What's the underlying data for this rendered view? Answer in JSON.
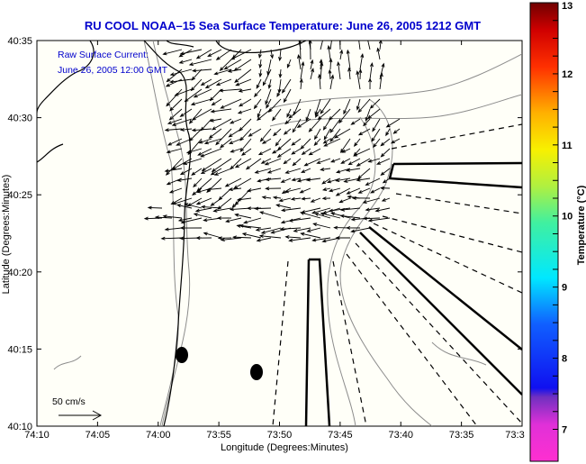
{
  "title": "RU COOL  NOAA–15  Sea Surface Temperature:  June 26, 2005 1212 GMT",
  "annotation": {
    "line1": "Raw Surface Current:",
    "line2": "June 26, 2005 12:00 GMT"
  },
  "scale_label": "50 cm/s",
  "colors": {
    "title": "#0000cc",
    "axes": "#000000",
    "contour": "#8c8c8c",
    "field_bg": "#fffff8"
  },
  "chart_data": {
    "type": "vector-map",
    "title": "RU COOL  NOAA–15  Sea Surface Temperature:  June 26, 2005 1212 GMT",
    "xlabel": "Longitude (Degrees:Minutes)",
    "ylabel": "Latitude (Degrees:Minutes)",
    "x_ticks": [
      "74:10",
      "74:05",
      "74:00",
      "73:55",
      "73:50",
      "73:45",
      "73:40",
      "73:35",
      "73:3"
    ],
    "y_ticks": [
      "40:35",
      "40:30",
      "40:25",
      "40:20",
      "40:15",
      "40:10"
    ],
    "xlim_minutes_west": [
      70,
      30
    ],
    "ylim_minutes_north": [
      10,
      35
    ],
    "markers": [
      {
        "lon_min_w": 58.9,
        "lat_min_n": 14.6
      },
      {
        "lon_min_w": 52.2,
        "lat_min_n": 13.5
      }
    ],
    "colorbar": {
      "label": "Temperature (°C)",
      "ticks": [
        "13",
        "12",
        "11",
        "10",
        "9",
        "8",
        "7"
      ],
      "range": [
        6.55,
        13
      ]
    }
  }
}
